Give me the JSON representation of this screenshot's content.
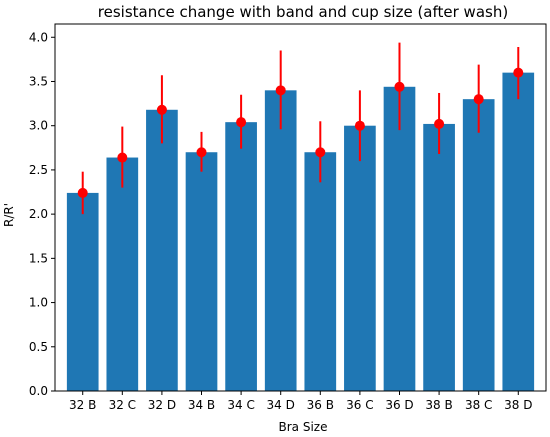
{
  "chart_data": {
    "type": "bar",
    "title": "resistance change with band and cup size (after wash)",
    "xlabel": "Bra Size",
    "ylabel": "R/R'",
    "ylim": [
      0,
      4.15
    ],
    "yticks": [
      "0.0",
      "0.5",
      "1.0",
      "1.5",
      "2.0",
      "2.5",
      "3.0",
      "3.5",
      "4.0"
    ],
    "categories": [
      "32 B",
      "32 C",
      "32 D",
      "34 B",
      "34 C",
      "34 D",
      "36 B",
      "36 C",
      "36 D",
      "38 B",
      "38 C",
      "38 D"
    ],
    "values": [
      2.24,
      2.64,
      3.18,
      2.7,
      3.04,
      3.4,
      2.7,
      3.0,
      3.44,
      3.02,
      3.3,
      3.6
    ],
    "error_low": [
      2.0,
      2.3,
      2.8,
      2.48,
      2.74,
      2.96,
      2.36,
      2.6,
      2.95,
      2.68,
      2.92,
      3.3
    ],
    "error_high": [
      2.48,
      2.99,
      3.57,
      2.93,
      3.35,
      3.85,
      3.05,
      3.4,
      3.94,
      3.37,
      3.69,
      3.89
    ],
    "bar_color": "#1f77b4",
    "marker_color": "#ff0000",
    "grid": false,
    "legend": "none"
  }
}
